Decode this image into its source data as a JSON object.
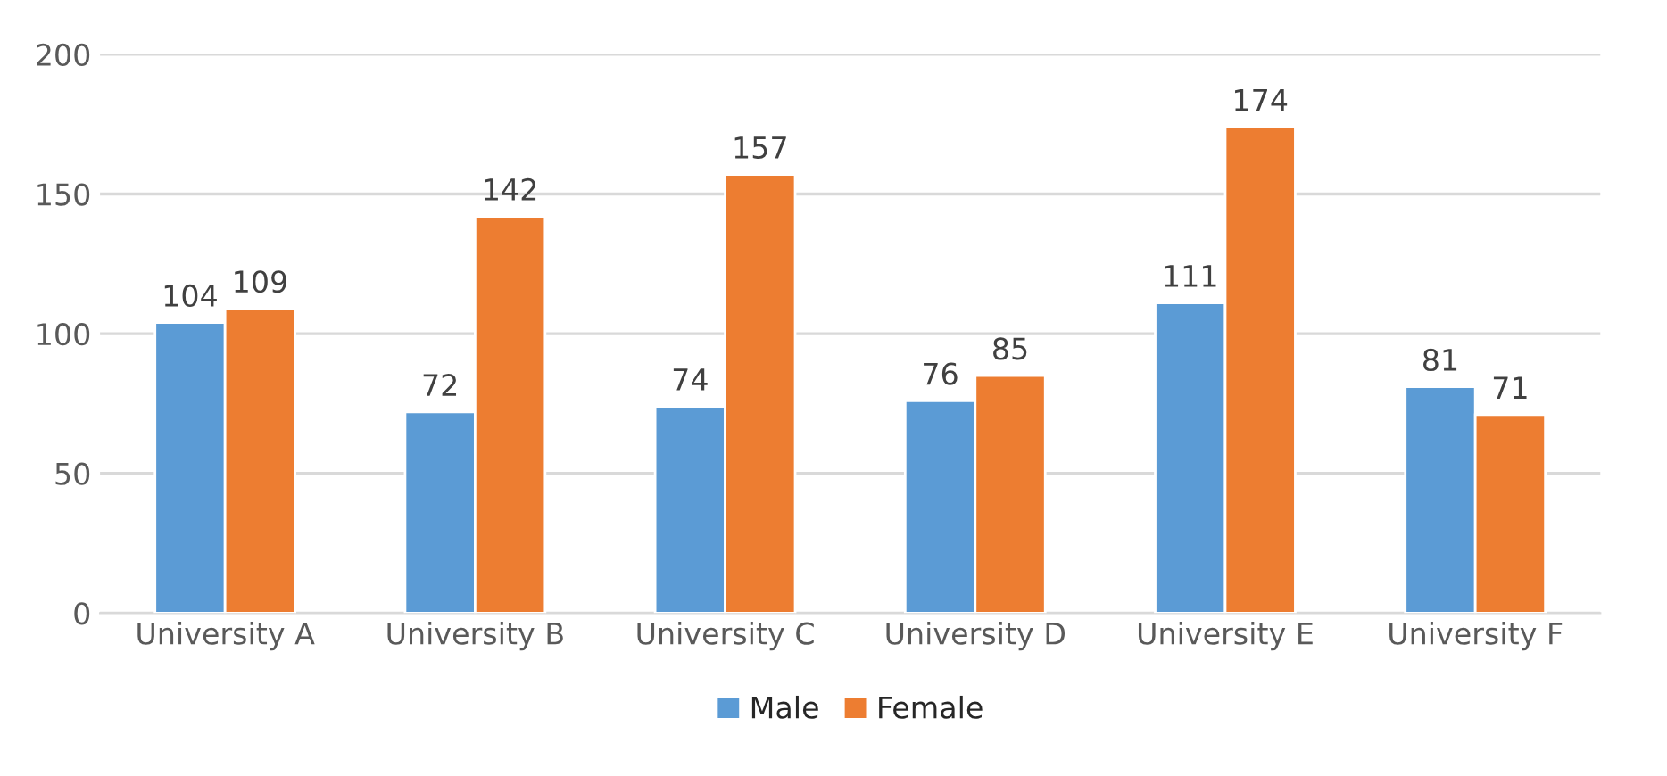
{
  "chart_data": {
    "type": "bar",
    "categories": [
      "University A",
      "University B",
      "University C",
      "University D",
      "University E",
      "University F"
    ],
    "series": [
      {
        "name": "Male",
        "color": "#5b9bd5",
        "values": [
          104,
          72,
          74,
          76,
          111,
          81
        ]
      },
      {
        "name": "Female",
        "color": "#ed7d31",
        "values": [
          109,
          142,
          157,
          85,
          174,
          71
        ]
      }
    ],
    "ylim": [
      0,
      200
    ],
    "yticks": [
      0,
      50,
      100,
      150,
      200
    ],
    "grid": "y",
    "legend": "bottom",
    "data_labels": true
  }
}
